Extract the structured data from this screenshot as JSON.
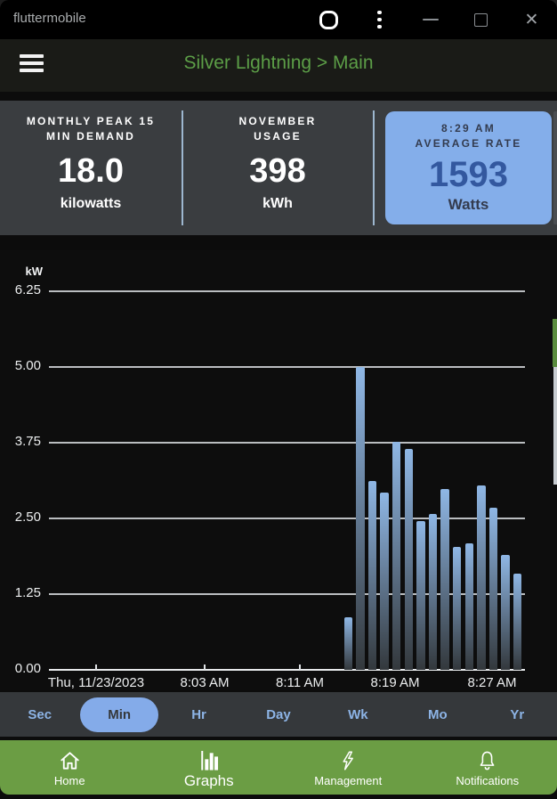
{
  "window": {
    "title": "fluttermobile"
  },
  "app_bar": {
    "title": "Silver Lightning > Main"
  },
  "stats": {
    "cards": [
      {
        "label_lines": [
          "MONTHLY PEAK 15",
          "MIN DEMAND"
        ],
        "value": "18.0",
        "unit": "kilowatts",
        "highlighted": false
      },
      {
        "label_lines": [
          "NOVEMBER",
          "USAGE"
        ],
        "value": "398",
        "unit": "kWh",
        "highlighted": false
      },
      {
        "label_lines": [
          "8:29 AM",
          "AVERAGE RATE"
        ],
        "value": "1593",
        "unit": "Watts",
        "highlighted": true
      }
    ]
  },
  "chart_data": {
    "type": "bar",
    "ylabel": "kW",
    "ylim": [
      0,
      6.25
    ],
    "y_ticks": [
      0,
      1.25,
      2.5,
      3.75,
      5,
      6.25
    ],
    "grid": "horizontal",
    "x_tick_labels": [
      "Thu, 11/23/2023",
      "8:03 AM",
      "8:11 AM",
      "8:19 AM",
      "8:27 AM"
    ],
    "bars": {
      "times": [
        "8:15 AM",
        "8:16 AM",
        "8:17 AM",
        "8:18 AM",
        "8:19 AM",
        "8:20 AM",
        "8:21 AM",
        "8:22 AM",
        "8:23 AM",
        "8:24 AM",
        "8:25 AM",
        "8:26 AM",
        "8:27 AM",
        "8:28 AM",
        "8:29 AM"
      ],
      "values_kw": [
        0.87,
        5.0,
        3.12,
        2.93,
        3.77,
        3.64,
        2.46,
        2.58,
        2.98,
        2.03,
        2.09,
        3.04,
        2.67,
        1.89,
        1.59
      ]
    },
    "bar_color_top": "#8fb7e5",
    "bar_color_bottom": "#33383c"
  },
  "range_selector": {
    "options": [
      "Sec",
      "Min",
      "Hr",
      "Day",
      "Wk",
      "Mo",
      "Yr"
    ],
    "selected": "Min"
  },
  "bottom_nav": {
    "items": [
      {
        "label": "Home",
        "icon": "home-icon"
      },
      {
        "label": "Graphs",
        "icon": "bar-chart-icon"
      },
      {
        "label": "Management",
        "icon": "lightning-icon"
      },
      {
        "label": "Notifications",
        "icon": "bell-icon"
      }
    ],
    "selected": "Graphs"
  },
  "colors": {
    "accent_blue": "#84aeea",
    "nav_green": "#6b9d44",
    "title_green": "#5c9e47",
    "panel_gray": "#3a3d40",
    "highlight_value_blue": "#33589f"
  }
}
